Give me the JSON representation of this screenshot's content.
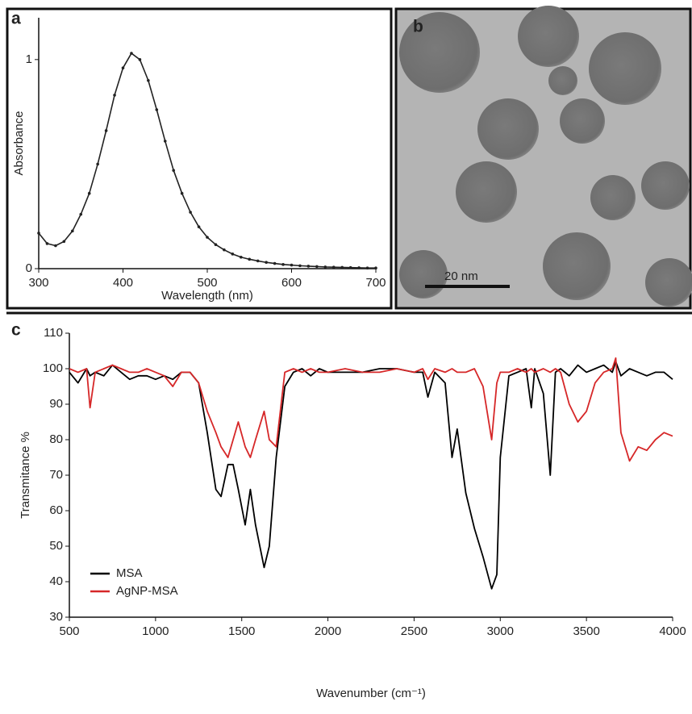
{
  "chart_data": [
    {
      "type": "line",
      "panel": "a",
      "xlabel": "Wavelength (nm)",
      "ylabel": "Absorbance",
      "x": [
        300,
        310,
        320,
        330,
        340,
        350,
        360,
        370,
        380,
        390,
        400,
        410,
        420,
        430,
        440,
        450,
        460,
        470,
        480,
        490,
        500,
        510,
        520,
        530,
        540,
        550,
        560,
        570,
        580,
        590,
        600,
        610,
        620,
        630,
        640,
        650,
        660,
        670,
        680,
        690,
        700
      ],
      "series": [
        {
          "color": "#222222",
          "values": [
            0.17,
            0.12,
            0.11,
            0.13,
            0.18,
            0.26,
            0.36,
            0.5,
            0.66,
            0.83,
            0.96,
            1.03,
            1.0,
            0.9,
            0.76,
            0.61,
            0.47,
            0.36,
            0.27,
            0.2,
            0.15,
            0.115,
            0.09,
            0.07,
            0.055,
            0.045,
            0.037,
            0.03,
            0.025,
            0.02,
            0.017,
            0.014,
            0.012,
            0.01,
            0.008,
            0.007,
            0.006,
            0.005,
            0.004,
            0.003,
            0.003
          ]
        }
      ],
      "markers": true,
      "xlim": [
        300,
        700
      ],
      "ylim": [
        0,
        1.2
      ],
      "xticks": [
        300,
        400,
        500,
        600,
        700
      ],
      "yticks": [
        0,
        1
      ]
    },
    {
      "type": "line",
      "panel": "c",
      "xlabel": "Wavenumber (cm⁻¹)",
      "ylabel": "Transmitance %",
      "x": [
        500,
        550,
        600,
        620,
        650,
        700,
        750,
        800,
        850,
        900,
        950,
        1000,
        1050,
        1100,
        1150,
        1200,
        1250,
        1300,
        1350,
        1380,
        1420,
        1450,
        1480,
        1520,
        1550,
        1580,
        1630,
        1660,
        1700,
        1750,
        1800,
        1850,
        1900,
        1950,
        2000,
        2100,
        2200,
        2300,
        2400,
        2500,
        2550,
        2580,
        2620,
        2680,
        2720,
        2750,
        2800,
        2850,
        2900,
        2950,
        2980,
        3000,
        3050,
        3100,
        3150,
        3180,
        3200,
        3250,
        3290,
        3320,
        3350,
        3400,
        3450,
        3500,
        3550,
        3600,
        3650,
        3670,
        3700,
        3750,
        3800,
        3850,
        3900,
        3950,
        4000
      ],
      "series": [
        {
          "name": "MSA",
          "color": "#000000",
          "values": [
            99,
            96,
            100,
            98,
            99,
            98,
            101,
            99,
            97,
            98,
            98,
            97,
            98,
            97,
            99,
            99,
            96,
            82,
            66,
            64,
            73,
            73,
            66,
            56,
            66,
            56,
            44,
            50,
            75,
            95,
            99,
            100,
            98,
            100,
            99,
            99,
            99,
            100,
            100,
            99,
            99,
            92,
            99,
            96,
            75,
            83,
            65,
            55,
            47,
            38,
            42,
            75,
            98,
            99,
            100,
            89,
            100,
            93,
            70,
            99,
            100,
            98,
            101,
            99,
            100,
            101,
            99,
            102,
            98,
            100,
            99,
            98,
            99,
            99,
            97
          ]
        },
        {
          "name": "AgNP-MSA",
          "color": "#d62728",
          "values": [
            100,
            99,
            100,
            89,
            99,
            100,
            101,
            100,
            99,
            99,
            100,
            99,
            98,
            95,
            99,
            99,
            96,
            88,
            82,
            78,
            75,
            80,
            85,
            78,
            75,
            80,
            88,
            80,
            78,
            99,
            100,
            99,
            100,
            99,
            99,
            100,
            99,
            99,
            100,
            99,
            100,
            97,
            100,
            99,
            100,
            99,
            99,
            100,
            95,
            80,
            96,
            99,
            99,
            100,
            99,
            100,
            99,
            100,
            99,
            100,
            99,
            90,
            85,
            88,
            96,
            99,
            100,
            103,
            82,
            74,
            78,
            77,
            80,
            82,
            81
          ]
        }
      ],
      "xlim": [
        500,
        4000
      ],
      "ylim": [
        30,
        110
      ],
      "xticks": [
        500,
        1000,
        1500,
        2000,
        2500,
        3000,
        3500,
        4000
      ],
      "yticks": [
        30,
        40,
        50,
        60,
        70,
        80,
        90,
        100,
        110
      ],
      "legend": "lower left"
    }
  ],
  "image_panel": {
    "panel": "b",
    "scale_bar": "20 nm"
  }
}
